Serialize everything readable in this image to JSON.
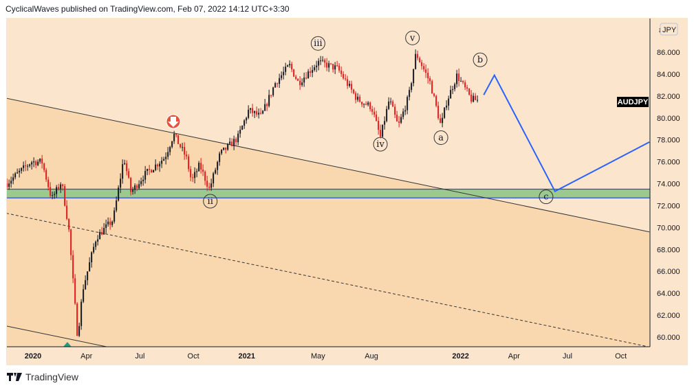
{
  "header": {
    "text": "CyclicalWaves published on TradingView.com, Feb 07, 2022 14:12 UTC+3:30"
  },
  "brand": {
    "name": "TradingView"
  },
  "colors": {
    "bg": "#fbe5cd",
    "channel": "#f9d8b0",
    "zone": "#9cc98f",
    "zone_line": "#2a4ed6",
    "projection": "#2962ff",
    "up": "#131722",
    "down": "#e5181a"
  },
  "chart_data": {
    "type": "candlestick",
    "symbol": "AUDJPY",
    "currency": "JPY",
    "ylim": [
      59,
      88.5
    ],
    "y_ticks": [
      "86.000",
      "84.000",
      "82.000",
      "80.000",
      "78.000",
      "76.000",
      "74.000",
      "72.000",
      "70.000",
      "68.000",
      "66.000",
      "64.000",
      "62.000",
      "60.000"
    ],
    "y_tick_values": [
      86,
      84,
      82,
      80,
      78,
      76,
      74,
      72,
      70,
      68,
      66,
      64,
      62,
      60
    ],
    "top_tick_partial": "8",
    "x_ticks": [
      {
        "label": "2020",
        "m": 0,
        "bold": true
      },
      {
        "label": "Apr",
        "m": 3
      },
      {
        "label": "Jul",
        "m": 6
      },
      {
        "label": "Oct",
        "m": 9
      },
      {
        "label": "2021",
        "m": 12,
        "bold": true
      },
      {
        "label": "May",
        "m": 16
      },
      {
        "label": "Aug",
        "m": 19
      },
      {
        "label": "2022",
        "m": 24,
        "bold": true
      },
      {
        "label": "Apr",
        "m": 27
      },
      {
        "label": "Jul",
        "m": 30
      },
      {
        "label": "Oct",
        "m": 33
      }
    ],
    "x_unit": "months since Jan 2020",
    "price_path": [
      [
        -1.5,
        74
      ],
      [
        -0.1,
        76
      ],
      [
        0.5,
        76
      ],
      [
        1.05,
        72.6
      ],
      [
        1.6,
        74.2
      ],
      [
        2,
        70
      ],
      [
        2.5,
        60
      ],
      [
        2.8,
        64.4
      ],
      [
        3.55,
        69.1
      ],
      [
        4.5,
        70.7
      ],
      [
        5.1,
        76.4
      ],
      [
        5.5,
        73.2
      ],
      [
        6.25,
        74.8
      ],
      [
        7.4,
        76.4
      ],
      [
        7.9,
        78.5
      ],
      [
        8.6,
        76.4
      ],
      [
        8.9,
        74.2
      ],
      [
        9.35,
        75.7
      ],
      [
        9.9,
        73.5
      ],
      [
        10.5,
        76.7
      ],
      [
        11.5,
        78.2
      ],
      [
        12.1,
        80.7
      ],
      [
        12.8,
        80.1
      ],
      [
        13.6,
        83.2
      ],
      [
        14.4,
        84.8
      ],
      [
        14.9,
        83.2
      ],
      [
        16,
        85.1
      ],
      [
        17.1,
        84.5
      ],
      [
        18.2,
        81.7
      ],
      [
        19,
        81
      ],
      [
        19.5,
        78.2
      ],
      [
        20,
        81.7
      ],
      [
        20.5,
        79.2
      ],
      [
        21.1,
        82
      ],
      [
        21.5,
        85.9
      ],
      [
        22.3,
        83.2
      ],
      [
        22.9,
        79.2
      ],
      [
        23.2,
        81.4
      ],
      [
        23.8,
        83.9
      ],
      [
        24.6,
        81.7
      ],
      [
        25,
        81.6
      ]
    ],
    "projection": [
      [
        25.3,
        82.1
      ],
      [
        25.9,
        83.9
      ],
      [
        29.3,
        73.3
      ],
      [
        34.6,
        77.8
      ]
    ],
    "support_zone": [
      72.7,
      73.5
    ],
    "channel_upper": [
      [
        -1.5,
        81.8
      ],
      [
        34.6,
        69.6
      ]
    ],
    "channel_mid_dashed": [
      [
        -1.5,
        71.3
      ],
      [
        34.6,
        59.1
      ]
    ],
    "channel_lower": [
      [
        -1.5,
        61
      ]
    ],
    "wave_labels": [
      {
        "t": "ii",
        "m": 9.95,
        "p": 72.4
      },
      {
        "t": "iii",
        "m": 16.0,
        "p": 86.8
      },
      {
        "t": "iv",
        "m": 19.5,
        "p": 77.6
      },
      {
        "t": "v",
        "m": 21.3,
        "p": 87.3
      },
      {
        "t": "a",
        "m": 22.9,
        "p": 78.2
      },
      {
        "t": "b",
        "m": 25.1,
        "p": 85.3
      },
      {
        "t": "c",
        "m": 28.8,
        "p": 72.8
      }
    ]
  }
}
